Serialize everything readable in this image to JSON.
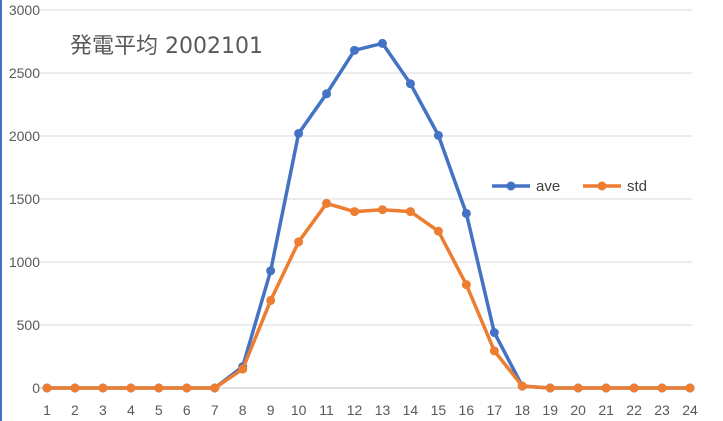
{
  "chart_data": {
    "type": "line",
    "title": "発電平均 2002101",
    "categories": [
      "1",
      "2",
      "3",
      "4",
      "5",
      "6",
      "7",
      "8",
      "9",
      "10",
      "11",
      "12",
      "13",
      "14",
      "15",
      "16",
      "17",
      "18",
      "19",
      "20",
      "21",
      "22",
      "23",
      "24"
    ],
    "ylim": [
      0,
      3000
    ],
    "yticks": [
      "0",
      "500",
      "1000",
      "1500",
      "2000",
      "2500",
      "3000"
    ],
    "grid": true,
    "legend_position": "right",
    "series": [
      {
        "name": "ave",
        "color": "#4472C4",
        "values": [
          0,
          0,
          0,
          0,
          0,
          0,
          0,
          170,
          930,
          2020,
          2335,
          2680,
          2735,
          2415,
          2005,
          1385,
          440,
          15,
          0,
          0,
          0,
          0,
          0,
          0
        ]
      },
      {
        "name": "std",
        "color": "#ED7D31",
        "values": [
          0,
          0,
          0,
          0,
          0,
          0,
          0,
          150,
          695,
          1160,
          1465,
          1400,
          1415,
          1400,
          1245,
          820,
          295,
          15,
          0,
          0,
          0,
          0,
          0,
          0
        ]
      }
    ]
  }
}
